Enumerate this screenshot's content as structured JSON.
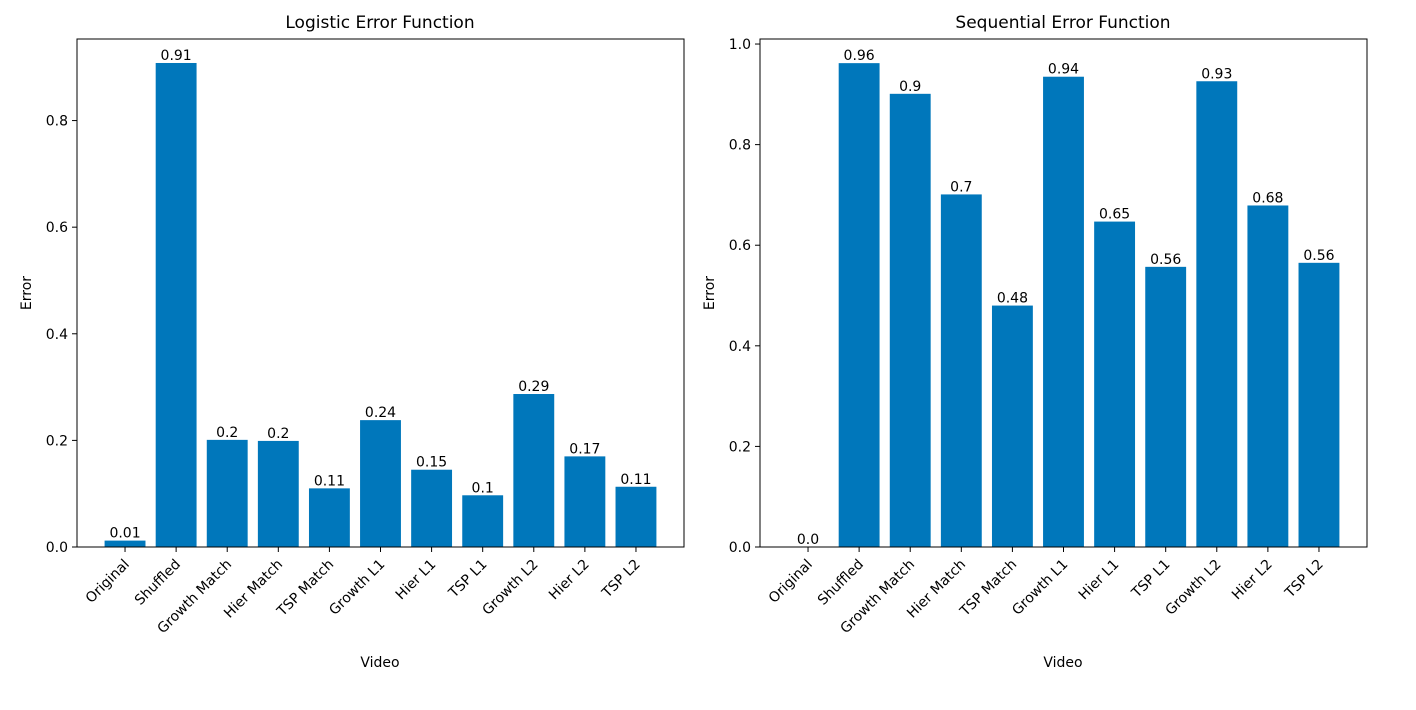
{
  "figure": {
    "bar_color": "#0077bb",
    "axis_color": "#000000"
  },
  "chart_data": [
    {
      "type": "bar",
      "title": "Logistic Error Function",
      "xlabel": "Video",
      "ylabel": "Error",
      "categories": [
        "Original",
        "Shuffled",
        "Growth Match",
        "Hier Match",
        "TSP Match",
        "Growth L1",
        "Hier L1",
        "TSP L1",
        "Growth L2",
        "Hier L2",
        "TSP L2"
      ],
      "values": [
        0.012,
        0.908,
        0.201,
        0.199,
        0.11,
        0.238,
        0.145,
        0.097,
        0.287,
        0.17,
        0.113
      ],
      "data_labels": [
        "0.01",
        "0.91",
        "0.2",
        "0.2",
        "0.11",
        "0.24",
        "0.15",
        "0.1",
        "0.29",
        "0.17",
        "0.11"
      ],
      "yticks": [
        0.0,
        0.2,
        0.4,
        0.6,
        0.8
      ],
      "ytick_labels": [
        "0.0",
        "0.2",
        "0.4",
        "0.6",
        "0.8"
      ],
      "ylim": [
        0,
        0.953
      ],
      "grid": false,
      "legend": "none"
    },
    {
      "type": "bar",
      "title": "Sequential Error Function",
      "xlabel": "Video",
      "ylabel": "Error",
      "categories": [
        "Original",
        "Shuffled",
        "Growth Match",
        "Hier Match",
        "TSP Match",
        "Growth L1",
        "Hier L1",
        "TSP L1",
        "Growth L2",
        "Hier L2",
        "TSP L2"
      ],
      "values": [
        0.0,
        0.962,
        0.901,
        0.701,
        0.48,
        0.935,
        0.647,
        0.557,
        0.926,
        0.679,
        0.565
      ],
      "data_labels": [
        "0.0",
        "0.96",
        "0.9",
        "0.7",
        "0.48",
        "0.94",
        "0.65",
        "0.56",
        "0.93",
        "0.68",
        "0.56"
      ],
      "yticks": [
        0.0,
        0.2,
        0.4,
        0.6,
        0.8,
        1.0
      ],
      "ytick_labels": [
        "0.0",
        "0.2",
        "0.4",
        "0.6",
        "0.8",
        "1.0"
      ],
      "ylim": [
        0,
        1.01
      ],
      "grid": false,
      "legend": "none"
    }
  ]
}
